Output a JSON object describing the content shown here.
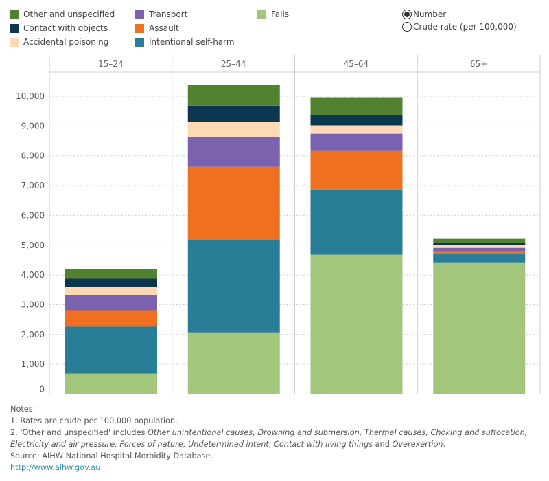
{
  "legend": [
    {
      "label": "Other and unspecified",
      "color": "#52812f"
    },
    {
      "label": "Contact with objects",
      "color": "#0a374f"
    },
    {
      "label": "Accidental poisoning",
      "color": "#fed9b4"
    },
    {
      "label": "Transport",
      "color": "#7a62ae"
    },
    {
      "label": "Assault",
      "color": "#f07022"
    },
    {
      "label": "Intentional self-harm",
      "color": "#2a7d96"
    },
    {
      "label": "Falls",
      "color": "#a2c67c"
    }
  ],
  "measure_toggle": {
    "options": [
      {
        "label": "Number",
        "selected": true
      },
      {
        "label": "Crude rate (per 100,000)",
        "selected": false
      }
    ]
  },
  "chart_data": {
    "type": "bar",
    "stacked": true,
    "categories": [
      "15–24",
      "25–44",
      "45–64",
      "65+"
    ],
    "ylim": [
      0,
      10800
    ],
    "y_ticks": [
      "0",
      "1,000",
      "2,000",
      "3,000",
      "4,000",
      "5,000",
      "6,000",
      "7,000",
      "8,000",
      "9,000",
      "10,000"
    ],
    "grid": true,
    "legend_position": "top",
    "series": [
      {
        "name": "Falls",
        "color": "#a2c67c",
        "values": [
          690,
          2070,
          4680,
          4400
        ]
      },
      {
        "name": "Intentional self-harm",
        "color": "#2a7d96",
        "values": [
          1570,
          3090,
          2190,
          300
        ]
      },
      {
        "name": "Assault",
        "color": "#f07022",
        "values": [
          555,
          2470,
          1290,
          70
        ]
      },
      {
        "name": "Transport",
        "color": "#7a62ae",
        "values": [
          505,
          990,
          580,
          140
        ]
      },
      {
        "name": "Accidental poisoning",
        "color": "#fed9b4",
        "values": [
          275,
          510,
          280,
          90
        ]
      },
      {
        "name": "Contact with objects",
        "color": "#0a374f",
        "values": [
          280,
          550,
          345,
          70
        ]
      },
      {
        "name": "Other and unspecified",
        "color": "#52812f",
        "values": [
          325,
          690,
          600,
          140
        ]
      }
    ]
  },
  "notes": {
    "heading": "Notes:",
    "note1": "1. Rates are crude per 100,000 population.",
    "note2_prefix": "2. 'Other and unspecified' includes ",
    "note2_italic1": "Other unintentional causes, Drowning and submersion, Thermal causes, Choking and suffocation, Electricity and air pressure, Forces of nature, Undetermined intent, Contact with living things",
    "note2_and": " and ",
    "note2_italic2": "Overexertion",
    "note2_suffix": ".",
    "source": "Source: AIHW National Hospital Morbidity Database.",
    "link": "http://www.aihw.gov.au"
  }
}
